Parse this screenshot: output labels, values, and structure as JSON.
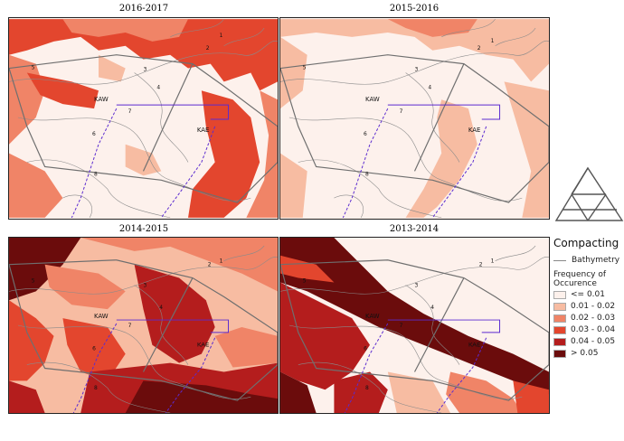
{
  "panels": [
    {
      "title": "2016-2017",
      "theme": "a"
    },
    {
      "title": "2015-2016",
      "theme": "b"
    },
    {
      "title": "2014-2015",
      "theme": "c"
    },
    {
      "title": "2013-2014",
      "theme": "d"
    }
  ],
  "map_labels": {
    "kaw": "KAW",
    "kae": "KAE",
    "contours": [
      "1",
      "2",
      "3",
      "4",
      "5",
      "6",
      "7",
      "8"
    ]
  },
  "legend": {
    "title": "Compacting",
    "bathymetry": "Bathymetry",
    "subtitle": "Frequency of Occurence",
    "classes": [
      {
        "label": "<= 0.01",
        "color": "#fdf1ec"
      },
      {
        "label": "0.01 - 0.02",
        "color": "#f7bca2"
      },
      {
        "label": "0.02 - 0.03",
        "color": "#f08467"
      },
      {
        "label": "0.03 - 0.04",
        "color": "#e3462e"
      },
      {
        "label": "0.04 - 0.05",
        "color": "#b41d1d"
      },
      {
        "label": "> 0.05",
        "color": "#6b0c0c"
      }
    ]
  },
  "colors": {
    "boundary": "#6f6f6f",
    "channel": "#5b2bd0",
    "contour": "#8a8a8a"
  }
}
